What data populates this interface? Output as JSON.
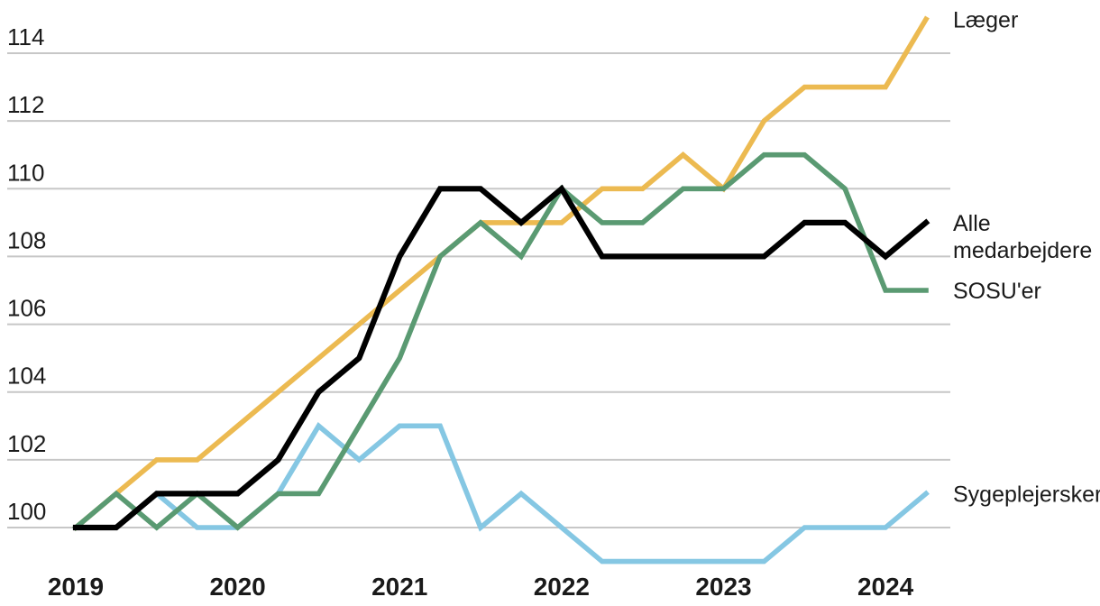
{
  "chart_data": {
    "type": "line",
    "description": "Index chart (quarterly) of wage development for Danish health staff groups, index 100 = 2019Q1",
    "x_axis": {
      "years": [
        "2019",
        "2020",
        "2021",
        "2022",
        "2023",
        "2024"
      ],
      "points_per_year": 4,
      "total_points": 22
    },
    "y_axis": {
      "ticks": [
        100,
        102,
        104,
        106,
        108,
        110,
        112,
        114
      ],
      "range_drawn": [
        100,
        114
      ]
    },
    "grid": "horizontal",
    "legend_position": "right-end-labels",
    "style": {
      "background": "#ffffff",
      "gridline_color": "#c7c7c7",
      "text_color": "#1a1a1a"
    },
    "series": [
      {
        "name": "Læger",
        "slug": "laeger",
        "label_lines": [
          "Læger"
        ],
        "color": "#ECBA51",
        "values": [
          100,
          101,
          102,
          102,
          103,
          104,
          105,
          106,
          107,
          108,
          109,
          109,
          109,
          110,
          110,
          111,
          110,
          112,
          113,
          113,
          113,
          115
        ]
      },
      {
        "name": "Alle medarbejdere",
        "slug": "alle-medarbejdere",
        "label_lines": [
          "Alle",
          "medarbejdere"
        ],
        "color": "#000000",
        "values": [
          100,
          100,
          101,
          101,
          101,
          102,
          104,
          105,
          108,
          110,
          110,
          109,
          110,
          108,
          108,
          108,
          108,
          108,
          109,
          109,
          108,
          109
        ]
      },
      {
        "name": "SOSU'er",
        "slug": "sosuer",
        "label_lines": [
          "SOSU'er"
        ],
        "color": "#5A9A72",
        "values": [
          100,
          101,
          100,
          101,
          100,
          101,
          101,
          103,
          105,
          108,
          109,
          108,
          110,
          109,
          109,
          110,
          110,
          111,
          111,
          110,
          107,
          107
        ]
      },
      {
        "name": "Sygeplejersker",
        "slug": "sygeplejersker",
        "label_lines": [
          "Sygeplejersker"
        ],
        "color": "#85C7E3",
        "values": [
          100,
          100,
          101,
          100,
          100,
          101,
          103,
          102,
          103,
          103,
          100,
          101,
          100,
          99,
          99,
          99,
          99,
          99,
          100,
          100,
          100,
          101
        ]
      }
    ]
  }
}
